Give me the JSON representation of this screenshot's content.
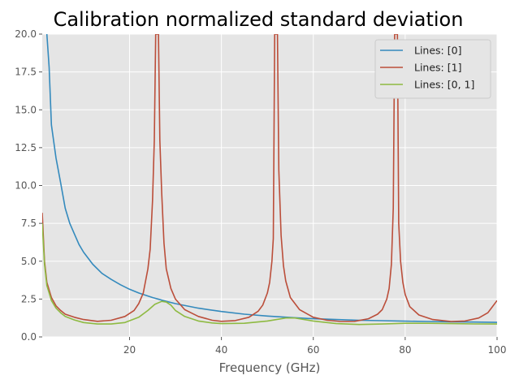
{
  "chart_data": {
    "type": "line",
    "title": "Calibration normalized standard deviation",
    "xlabel": "Frequency (GHz)",
    "ylabel": "",
    "xlim": [
      1,
      100
    ],
    "ylim": [
      0,
      20
    ],
    "xticks": [
      20,
      40,
      60,
      80,
      100
    ],
    "xtick_labels": [
      "20",
      "40",
      "60",
      "80",
      "100"
    ],
    "yticks": [
      0,
      2.5,
      5,
      7.5,
      10,
      12.5,
      15,
      17.5,
      20
    ],
    "ytick_labels": [
      "0.0",
      "2.5",
      "5.0",
      "7.5",
      "10.0",
      "12.5",
      "15.0",
      "17.5",
      "20.0"
    ],
    "grid": true,
    "legend_position": "top-right",
    "series": [
      {
        "name": "Lines: [0]",
        "color": "#348ABD",
        "x": [
          2,
          2.5,
          3,
          4,
          5,
          6,
          7,
          8,
          9,
          10,
          12,
          14,
          16,
          18,
          20,
          22,
          25,
          28,
          30,
          35,
          40,
          45,
          50,
          55,
          60,
          65,
          70,
          75,
          80,
          85,
          90,
          95,
          100
        ],
        "y": [
          20.0,
          17.8,
          14.0,
          11.8,
          10.2,
          8.5,
          7.5,
          6.8,
          6.1,
          5.6,
          4.8,
          4.2,
          3.8,
          3.45,
          3.15,
          2.9,
          2.6,
          2.35,
          2.2,
          1.9,
          1.68,
          1.5,
          1.38,
          1.28,
          1.2,
          1.15,
          1.1,
          1.07,
          1.04,
          1.02,
          1.0,
          0.98,
          0.96
        ]
      },
      {
        "name": "Lines: [1]",
        "color": "#BB4E3A",
        "x": [
          1,
          1.5,
          2,
          3,
          4,
          5,
          6,
          8,
          10,
          13,
          16,
          19,
          21,
          22,
          23,
          24,
          24.5,
          25,
          25.4,
          25.7,
          26.3,
          26.6,
          27,
          27.5,
          28,
          29,
          30,
          32,
          35,
          38,
          40,
          43,
          46,
          48,
          49,
          50,
          50.5,
          51,
          51.3,
          51.6,
          52.2,
          52.5,
          53,
          53.5,
          54,
          55,
          57,
          60,
          63,
          66,
          69,
          72,
          74,
          75,
          76,
          76.5,
          77,
          77.4,
          77.7,
          78.3,
          78.6,
          79,
          79.5,
          80,
          81,
          83,
          86,
          90,
          93,
          96,
          98,
          100
        ],
        "y": [
          8.2,
          5.0,
          3.6,
          2.6,
          2.05,
          1.75,
          1.5,
          1.3,
          1.15,
          1.03,
          1.1,
          1.35,
          1.75,
          2.2,
          2.9,
          4.5,
          5.8,
          9.0,
          13.0,
          20.0,
          20.0,
          13.0,
          9.5,
          6.2,
          4.5,
          3.2,
          2.5,
          1.8,
          1.35,
          1.1,
          1.03,
          1.08,
          1.3,
          1.7,
          2.1,
          2.9,
          3.6,
          5.0,
          6.5,
          20.0,
          20.0,
          11.0,
          6.7,
          4.7,
          3.7,
          2.6,
          1.8,
          1.3,
          1.1,
          1.02,
          1.03,
          1.2,
          1.5,
          1.8,
          2.5,
          3.2,
          4.8,
          8.5,
          20.0,
          20.0,
          7.5,
          5.0,
          3.6,
          2.8,
          2.0,
          1.45,
          1.15,
          1.02,
          1.05,
          1.25,
          1.6,
          2.4
        ]
      },
      {
        "name": "Lines: [0, 1]",
        "color": "#8EBA42",
        "x": [
          1,
          1.5,
          2,
          3,
          4,
          5,
          6,
          8,
          10,
          13,
          16,
          19,
          22,
          24,
          25.5,
          27,
          28,
          29,
          30,
          32,
          35,
          38,
          40,
          45,
          50,
          54,
          56,
          60,
          65,
          70,
          75,
          80,
          85,
          90,
          95,
          100
        ],
        "y": [
          7.5,
          4.8,
          3.4,
          2.4,
          1.9,
          1.6,
          1.35,
          1.12,
          0.95,
          0.85,
          0.85,
          0.95,
          1.3,
          1.75,
          2.15,
          2.35,
          2.3,
          2.1,
          1.75,
          1.35,
          1.05,
          0.92,
          0.88,
          0.9,
          1.05,
          1.25,
          1.25,
          1.05,
          0.88,
          0.82,
          0.85,
          0.9,
          0.9,
          0.88,
          0.86,
          0.85
        ]
      }
    ]
  }
}
